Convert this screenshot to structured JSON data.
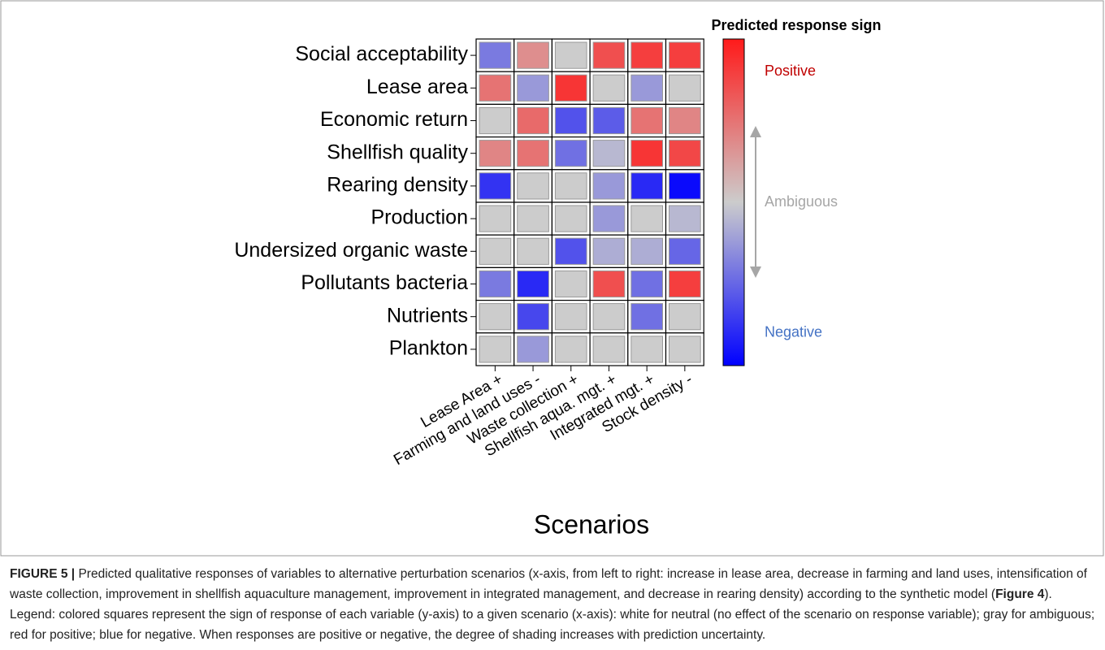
{
  "chart_data": {
    "type": "heatmap",
    "rows": [
      "Social acceptability",
      "Lease area",
      "Economic return",
      "Shellfish quality",
      "Rearing density",
      "Production",
      "Undersized organic waste",
      "Pollutants bacteria",
      "Nutrients",
      "Plankton"
    ],
    "columns": [
      "Lease Area +",
      "Farming and land uses -",
      "Waste collection +",
      "Shellfish aqua. mgt. +",
      "Integrated mgt. +",
      "Stock density -"
    ],
    "values": [
      [
        -0.4,
        0.35,
        0,
        0.7,
        0.8,
        0.8
      ],
      [
        0.5,
        -0.25,
        0.85,
        0,
        -0.25,
        0
      ],
      [
        0,
        0.55,
        -0.6,
        -0.55,
        0.5,
        0.4
      ],
      [
        0.4,
        0.5,
        -0.45,
        -0.1,
        0.85,
        0.75
      ],
      [
        -0.75,
        0,
        0,
        -0.25,
        -0.8,
        -0.95
      ],
      [
        0,
        0,
        0,
        -0.25,
        0,
        -0.1
      ],
      [
        0,
        0,
        -0.6,
        -0.15,
        -0.15,
        -0.5
      ],
      [
        -0.4,
        -0.8,
        0,
        0.7,
        -0.45,
        0.8
      ],
      [
        0,
        -0.65,
        0,
        0,
        -0.45,
        0
      ],
      [
        0,
        -0.25,
        0,
        0,
        0,
        0
      ]
    ],
    "zlim": [
      -1,
      1
    ],
    "colormap": [
      "#0000ff",
      "#cccccc",
      "#ff1a1a"
    ],
    "x_label": "Scenarios",
    "colorbar": {
      "title": "Predicted response sign",
      "labels": [
        {
          "value": 0.8,
          "label": "Positive",
          "color": "#c00000"
        },
        {
          "value": 0,
          "label": "Ambiguous",
          "color": "#a6a6a6"
        },
        {
          "value": -0.8,
          "label": "Negative",
          "color": "#4472c4"
        }
      ]
    }
  },
  "caption": {
    "label": "FIGURE 5 |",
    "parts": [
      " Predicted qualitative responses of variables to alternative perturbation scenarios (x-axis, from left to right: increase in lease area, decrease in farming and land uses, intensification of waste collection, improvement in shellfish aquaculture management, improvement in integrated management, and decrease in rearing density) according to the synthetic model (",
      "Figure 4",
      "). Legend: colored squares represent the sign of response of each variable (y-axis) to a given scenario (x-axis): white for neutral (no effect of the scenario on response variable); gray for ambiguous; red for positive; blue for negative. When responses are positive or negative, the degree of shading increases with prediction uncertainty."
    ]
  }
}
